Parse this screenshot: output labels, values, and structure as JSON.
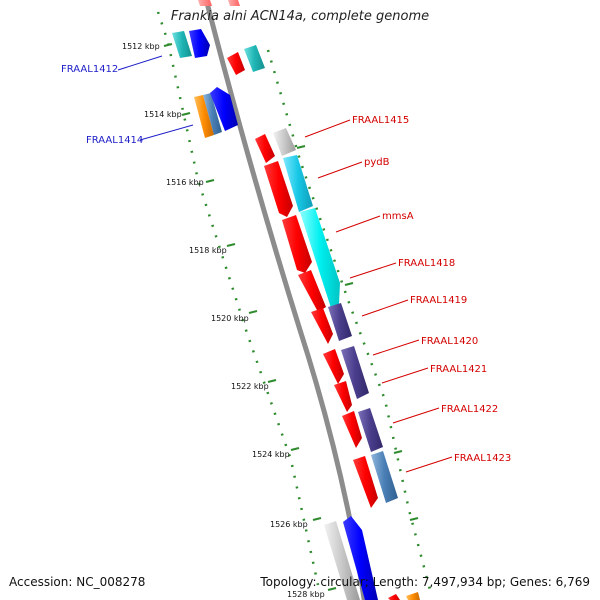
{
  "title": "Frankia alni ACN14a, complete genome",
  "footer": {
    "accession": "Accession: NC_008278",
    "topology": "Topology: circular; Length: 7,497,934 bp; Genes: 6,769"
  },
  "ticks": [
    "1512 kbp",
    "1514 kbp",
    "1516 kbp",
    "1518 kbp",
    "1520 kbp",
    "1522 kbp",
    "1524 kbp",
    "1526 kbp",
    "1528 kbp"
  ],
  "gene_labels": [
    {
      "text": "FRAAL1412",
      "color": "#1e1ec8"
    },
    {
      "text": "FRAAL1414",
      "color": "#1e1ec8"
    },
    {
      "text": "FRAAL1415",
      "color": "#d40000"
    },
    {
      "text": "pydB",
      "color": "#d40000"
    },
    {
      "text": "mmsA",
      "color": "#d40000"
    },
    {
      "text": "FRAAL1418",
      "color": "#d40000"
    },
    {
      "text": "FRAAL1419",
      "color": "#d40000"
    },
    {
      "text": "FRAAL1420",
      "color": "#d40000"
    },
    {
      "text": "FRAAL1421",
      "color": "#d40000"
    },
    {
      "text": "FRAAL1422",
      "color": "#d40000"
    },
    {
      "text": "FRAAL1423",
      "color": "#d40000"
    }
  ],
  "colors": {
    "backbone": "#8c8c8c",
    "tick_dots": "#2e8b2e",
    "cds_forward": "#ff0000",
    "cds_reverse": "#0000ff",
    "teal": "#1fb5b5",
    "cyan": "#17c8e6",
    "navy": "#4a3e8c",
    "steel": "#4a7fb5",
    "grey": "#c8c8c8",
    "orange": "#ff8c00"
  }
}
